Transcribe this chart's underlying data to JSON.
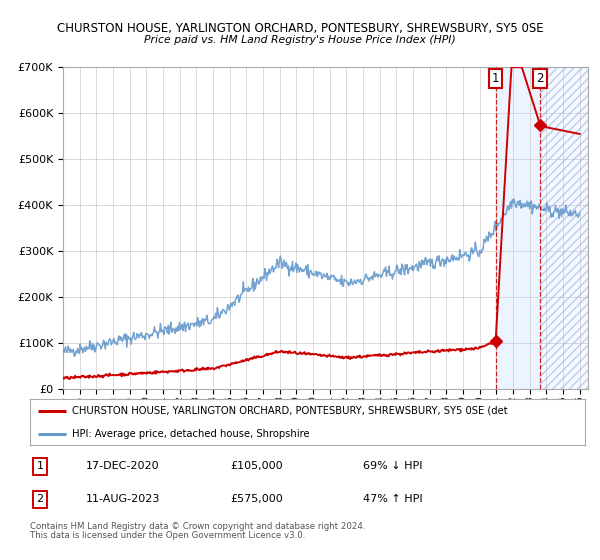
{
  "title1": "CHURSTON HOUSE, YARLINGTON ORCHARD, PONTESBURY, SHREWSBURY, SY5 0SE",
  "title2": "Price paid vs. HM Land Registry's House Price Index (HPI)",
  "ylim": [
    0,
    700000
  ],
  "yticks": [
    0,
    100000,
    200000,
    300000,
    400000,
    500000,
    600000,
    700000
  ],
  "xlim_start": 1995.0,
  "xlim_end": 2026.5,
  "sale1_x": 2020.96,
  "sale1_price": 105000,
  "sale2_x": 2023.62,
  "sale2_price": 575000,
  "sale1_date": "17-DEC-2020",
  "sale2_date": "11-AUG-2023",
  "sale1_hpi_text": "69% ↓ HPI",
  "sale2_hpi_text": "47% ↑ HPI",
  "legend_line1": "CHURSTON HOUSE, YARLINGTON ORCHARD, PONTESBURY, SHREWSBURY, SY5 0SE (det",
  "legend_line2": "HPI: Average price, detached house, Shropshire",
  "footer1": "Contains HM Land Registry data © Crown copyright and database right 2024.",
  "footer2": "This data is licensed under the Open Government Licence v3.0.",
  "hpi_color": "#6699cc",
  "sale_color": "#cc0000",
  "background_color": "#ffffff"
}
